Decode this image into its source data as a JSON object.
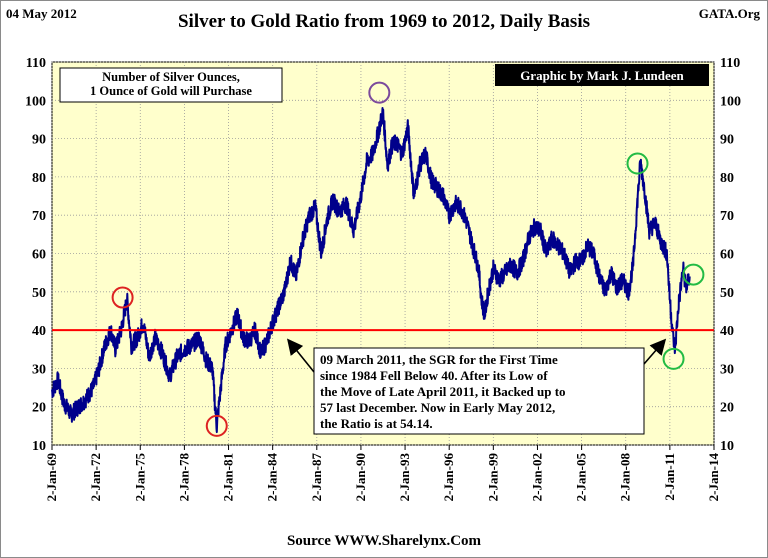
{
  "header": {
    "date": "04 May 2012",
    "site": "GATA.Org"
  },
  "source": "Source WWW.Sharelynx.Com",
  "colors": {
    "plot_background": "#ffffcc",
    "line": "#00008b",
    "ratio_40_line": "#ff0000",
    "circle_red": "#dd2222",
    "circle_purple": "#7b4a9c",
    "circle_green": "#22bb44",
    "credit_background": "#000000",
    "credit_text": "#ffffff"
  },
  "chart_data": {
    "type": "line",
    "title": "Silver to Gold Ratio from 1969 to 2012, Daily Basis",
    "ylim": [
      10,
      110
    ],
    "yticks": [
      10,
      20,
      30,
      40,
      50,
      60,
      70,
      80,
      90,
      100,
      110
    ],
    "xlim": [
      "1969-01-02",
      "2014-01-02"
    ],
    "xtick_labels": [
      "2-Jan-69",
      "2-Jan-72",
      "2-Jan-75",
      "2-Jan-78",
      "2-Jan-81",
      "2-Jan-84",
      "2-Jan-87",
      "2-Jan-90",
      "2-Jan-93",
      "2-Jan-96",
      "2-Jan-99",
      "2-Jan-02",
      "2-Jan-05",
      "2-Jan-08",
      "2-Jan-11",
      "2-Jan-14"
    ],
    "grid": true,
    "legend_box": "Number of Silver Ounces,\n1 Ounce of Gold will Purchase",
    "credit": "Graphic by Mark J. Lundeen",
    "annotation": "09 March 2011, the SGR for the First Time\nsince 1984 Fell Below 40.  After its  Low of\nthe Move of Late April 2011, it  Backed up to\n57  last December.  Now in  Early May 2012,\nthe Ratio is at 54.14.",
    "reference_line": 40,
    "series": [
      {
        "x": [
          1969.0,
          1969.4,
          1969.8,
          1970.3,
          1970.8,
          1971.3,
          1971.8,
          1972.2,
          1972.6,
          1973.0,
          1973.3,
          1973.7,
          1974.1,
          1974.4,
          1974.8,
          1975.2,
          1975.6,
          1976.0,
          1976.5,
          1977.0,
          1977.5,
          1978.0,
          1978.5,
          1979.0,
          1979.5,
          1979.9,
          1980.05,
          1980.2,
          1980.5,
          1980.8,
          1981.2,
          1981.6,
          1982.0,
          1982.4,
          1982.8,
          1983.2,
          1983.6,
          1984.0,
          1984.4,
          1984.8,
          1985.2,
          1985.6,
          1986.0,
          1986.5,
          1986.9,
          1987.3,
          1987.7,
          1988.1,
          1988.5,
          1989.0,
          1989.5,
          1990.0,
          1990.4,
          1990.8,
          1991.2,
          1991.5,
          1991.8,
          1992.1,
          1992.4,
          1992.8,
          1993.2,
          1993.6,
          1994.0,
          1994.4,
          1994.8,
          1995.2,
          1995.6,
          1996.0,
          1996.4,
          1996.8,
          1997.2,
          1997.6,
          1998.0,
          1998.2,
          1998.4,
          1998.7,
          1999.0,
          1999.4,
          1999.8,
          2000.2,
          2000.6,
          2001.0,
          2001.4,
          2001.8,
          2002.2,
          2002.6,
          2003.0,
          2003.4,
          2003.8,
          2004.2,
          2004.6,
          2005.0,
          2005.4,
          2005.8,
          2006.2,
          2006.6,
          2007.0,
          2007.4,
          2007.8,
          2008.2,
          2008.5,
          2008.8,
          2009.0,
          2009.3,
          2009.6,
          2010.0,
          2010.4,
          2010.8,
          2011.0,
          2011.2,
          2011.35,
          2011.6,
          2011.9,
          2012.1,
          2012.35
        ],
        "y": [
          24,
          27,
          21,
          18,
          20,
          22,
          25,
          30,
          36,
          40,
          35,
          40,
          48,
          36,
          38,
          42,
          33,
          38,
          34,
          28,
          33,
          35,
          36,
          38,
          32,
          30,
          22,
          15,
          26,
          36,
          40,
          44,
          38,
          37,
          40,
          34,
          37,
          42,
          46,
          50,
          58,
          54,
          63,
          70,
          72,
          60,
          69,
          74,
          71,
          73,
          66,
          75,
          84,
          86,
          92,
          97,
          83,
          88,
          89,
          86,
          93,
          75,
          83,
          86,
          79,
          77,
          75,
          70,
          73,
          72,
          68,
          62,
          56,
          48,
          44,
          51,
          56,
          53,
          55,
          57,
          55,
          58,
          64,
          67,
          66,
          60,
          64,
          62,
          60,
          55,
          58,
          58,
          62,
          60,
          54,
          50,
          55,
          51,
          53,
          50,
          57,
          74,
          84,
          76,
          66,
          68,
          63,
          60,
          48,
          39,
          35,
          47,
          56,
          51,
          54
        ]
      }
    ],
    "highlights": [
      {
        "x": 1973.8,
        "y": 48.5,
        "color": "red"
      },
      {
        "x": 1980.2,
        "y": 15,
        "color": "red"
      },
      {
        "x": 1991.25,
        "y": 102,
        "color": "purple"
      },
      {
        "x": 2008.8,
        "y": 83.5,
        "color": "green"
      },
      {
        "x": 2011.25,
        "y": 32.5,
        "color": "green"
      },
      {
        "x": 2012.6,
        "y": 54.5,
        "color": "green"
      }
    ]
  }
}
